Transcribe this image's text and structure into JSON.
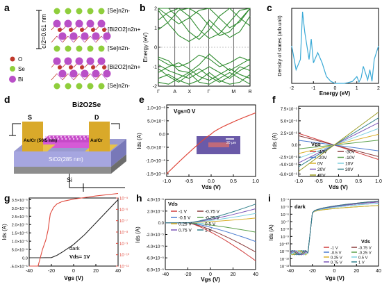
{
  "panels": {
    "a": {
      "letter": "a",
      "spacing_label": "c/2=0.61 nm",
      "layer_labels": [
        "[Se]n2n-",
        "[Bi2O2]n2n+",
        "[Se]n2n-",
        "[Bi2O2]n2n+",
        "[Se]n2n-"
      ],
      "legend": [
        {
          "label": "O",
          "color": "#c0392b"
        },
        {
          "label": "Se",
          "color": "#8fce3c"
        },
        {
          "label": "Bi",
          "color": "#b94fc7"
        }
      ]
    },
    "b": {
      "letter": "b",
      "ylabel": "Energy (eV)",
      "yticks": [
        "-2",
        "-1",
        "0",
        "1",
        "2"
      ],
      "kpoints": [
        "Γ",
        "A",
        "X",
        "Γ",
        "M",
        "R"
      ]
    },
    "c": {
      "letter": "c",
      "ylabel": "Density of states (arb.unit)",
      "xlabel": "Energy (eV)",
      "xticks": [
        "-2",
        "-1",
        "0",
        "1",
        "2"
      ]
    },
    "d": {
      "letter": "d",
      "title": "Bi2O2Se",
      "source": "S",
      "drain": "D",
      "left_contact": "Au/Cr (50/5 nm)",
      "right_contact": "Au/Cr",
      "oxide": "SiO2(285 nm)",
      "substrate": "Si"
    },
    "e": {
      "letter": "e",
      "annotation": "Vgs=0 V",
      "ylabel": "Ids (A)",
      "xlabel": "Vds (V)",
      "yticks": [
        "1.0×10⁻⁶",
        "5.0×10⁻⁷",
        "0.0",
        "-5.0×10⁻⁷",
        "-1.0×10⁻⁶",
        "-1.5×10⁻⁶"
      ],
      "xticks": [
        "-1.0",
        "-0.5",
        "0.0",
        "0.5",
        "1.0"
      ],
      "scale_bar": "20 μm"
    },
    "f": {
      "letter": "f",
      "legend_title": "Vgs",
      "ylabel": "Ids (A)",
      "xlabel": "Vds (V)",
      "yticks": [
        "7.5×10⁻⁶",
        "5.0×10⁻⁶",
        "2.5×10⁻⁶",
        "0.0",
        "-2.5×10⁻⁶",
        "-4.0×10⁻⁶",
        "-6.0×10⁻⁶"
      ],
      "xticks": [
        "-1.0",
        "-0.5",
        "0.0",
        "0.5",
        "1.0"
      ]
    },
    "g": {
      "letter": "g",
      "annotation1": "dark",
      "annotation2": "Vds= 1V",
      "ylabel": "Ids (A)",
      "xlabel": "Vgs (V)",
      "yticks": [
        "3.5×10⁻⁵",
        "3.0×10⁻⁵",
        "2.5×10⁻⁵",
        "2.0×10⁻⁵",
        "1.5×10⁻⁵",
        "1.0×10⁻⁵",
        "5.0×10⁻⁶",
        "0.0",
        "-5.0×10⁻⁶"
      ],
      "y2ticks": [
        "10⁻⁵",
        "10⁻⁶",
        "10⁻⁷",
        "10⁻⁸",
        "10⁻⁹",
        "10⁻¹⁰",
        "10⁻¹¹"
      ],
      "xticks": [
        "-40",
        "-20",
        "0",
        "20",
        "40"
      ]
    },
    "h": {
      "letter": "h",
      "legend_title": "Vds",
      "ylabel": "Ids (A)",
      "xlabel": "Vgs (V)",
      "yticks": [
        "4.0×10⁻⁵",
        "2.0×10⁻⁵",
        "0.0",
        "-2.0×10⁻⁵",
        "-4.0×10⁻⁵",
        "-6.0×10⁻⁵",
        "-8.0×10⁻⁵"
      ],
      "xticks": [
        "-40",
        "-20",
        "0",
        "20",
        "40"
      ]
    },
    "i": {
      "letter": "i",
      "annotation": "dark",
      "legend_title": "Vds",
      "ylabel": "Ids (A)",
      "xlabel": "Vgs (V)",
      "yticks": [
        "10⁻⁴",
        "10⁻⁵",
        "10⁻⁶",
        "10⁻⁷",
        "10⁻⁸",
        "10⁻⁹",
        "10⁻¹⁰",
        "10⁻¹¹",
        "10⁻¹²",
        "10⁻¹³"
      ],
      "xticks": [
        "-40",
        "-20",
        "0",
        "20",
        "40"
      ]
    }
  },
  "chart_data": [
    {
      "type": "line",
      "panel": "b",
      "ylabel": "Energy (eV)",
      "ylim": [
        -2,
        2
      ],
      "categories": [
        "Γ",
        "A",
        "X",
        "Γ",
        "M",
        "R"
      ],
      "series_count": 12
    },
    {
      "type": "line",
      "panel": "c",
      "xlabel": "Energy (eV)",
      "ylabel": "Density of states (arb.unit)",
      "xlim": [
        -2,
        2
      ],
      "x": [
        -2,
        -1.8,
        -1.6,
        -1.5,
        -1.4,
        -1.3,
        -1.2,
        -1.1,
        -1.0,
        -0.8,
        -0.6,
        -0.4,
        -0.2,
        0,
        0.2,
        0.4,
        0.6,
        0.8,
        1.0,
        1.1,
        1.2,
        1.3,
        1.4,
        1.5,
        1.6,
        1.7,
        1.8,
        1.9,
        2.0
      ],
      "values": [
        5.5,
        2.0,
        3.5,
        10.5,
        7.5,
        5.5,
        3.5,
        6.5,
        3.0,
        4.5,
        3.0,
        1.0,
        0.3,
        0,
        0,
        0,
        0.1,
        0.3,
        1.0,
        0.2,
        0.8,
        2.5,
        1.5,
        0.5,
        2.0,
        0.3,
        3.5,
        4.5,
        5.5
      ]
    },
    {
      "type": "line",
      "panel": "e",
      "xlabel": "Vds (V)",
      "ylabel": "Ids (A)",
      "annotation": "Vgs=0 V",
      "xlim": [
        -1,
        1
      ],
      "ylim": [
        -1.6e-06,
        1.1e-06
      ],
      "x": [
        -1,
        -0.75,
        -0.5,
        -0.25,
        0,
        0.25,
        0.5,
        0.75,
        1
      ],
      "values": [
        -1.5e-06,
        -1.05e-06,
        -6.5e-07,
        -3e-07,
        0,
        2.5e-07,
        4.5e-07,
        6.5e-07,
        8e-07
      ]
    },
    {
      "type": "line",
      "panel": "f",
      "xlabel": "Vds (V)",
      "ylabel": "Ids (A)",
      "xlim": [
        -1,
        1
      ],
      "ylim": [
        -6.5e-06,
        8e-06
      ],
      "legend_title": "Vgs",
      "series": [
        {
          "name": "-40V",
          "slope": -3e-06,
          "color": "#d03c3c"
        },
        {
          "name": "-30V",
          "slope": -2.4e-06,
          "color": "#8b3a3a"
        },
        {
          "name": "-20V",
          "slope": -1.2e-06,
          "color": "#4a7bd0"
        },
        {
          "name": "-10V",
          "slope": 1e-06,
          "color": "#5aa04a"
        },
        {
          "name": "0V",
          "slope": 2.2e-06,
          "color": "#d8b02a"
        },
        {
          "name": "10V",
          "slope": 3.4e-06,
          "color": "#7fd0e0"
        },
        {
          "name": "20V",
          "slope": 4.6e-06,
          "color": "#7b55b8"
        },
        {
          "name": "30V",
          "slope": 5.6e-06,
          "color": "#2f7f8a"
        },
        {
          "name": "40V",
          "slope": 6.8e-06,
          "color": "#9a9a20"
        }
      ]
    },
    {
      "type": "line",
      "panel": "g",
      "xlabel": "Vgs (V)",
      "ylabel": "Ids (A)",
      "annotation": "dark, Vds= 1V",
      "xlim": [
        -40,
        40
      ],
      "series": [
        {
          "name": "",
          "axis": "linear",
          "x": [
            -40,
            -30,
            -20,
            -15,
            -10,
            0,
            10,
            20,
            30,
            40
          ],
          "values": [
            0,
            0,
            1e-07,
            1.5e-06,
            3.5e-06,
            8e-06,
            1.4e-05,
            2.1e-05,
            2.8e-05,
            3.5e-05
          ],
          "color": "#222222"
        },
        {
          "name": "",
          "axis": "log",
          "x": [
            -40,
            -32,
            -28,
            -25,
            -23,
            -21,
            -18,
            -15,
            -10,
            0,
            20,
            40
          ],
          "values": [
            1e-11,
            1e-11,
            3e-10,
            2e-09,
            1.5e-08,
            4e-07,
            1.5e-06,
            3e-06,
            5e-06,
            8e-06,
            1.5e-05,
            2.5e-05
          ],
          "color": "#e0483c"
        }
      ]
    },
    {
      "type": "line",
      "panel": "h",
      "xlabel": "Vgs (V)",
      "ylabel": "Ids (A)",
      "xlim": [
        -40,
        40
      ],
      "ylim": [
        -8e-05,
        4e-05
      ],
      "legend_title": "Vds",
      "series": [
        {
          "name": "-1 V",
          "end": -6.5e-05,
          "color": "#d03c3c"
        },
        {
          "name": "-0.75 V",
          "end": -5e-05,
          "color": "#8b3a3a"
        },
        {
          "name": "-0.5 V",
          "end": -3.2e-05,
          "color": "#4a7bd0"
        },
        {
          "name": "-0.25 V",
          "end": -1.6e-05,
          "color": "#5aa04a"
        },
        {
          "name": "0.25 V",
          "end": 8e-06,
          "color": "#d8b02a"
        },
        {
          "name": "0.5 V",
          "end": 1.6e-05,
          "color": "#7fd0e0"
        },
        {
          "name": "0.75 V",
          "end": 2.4e-05,
          "color": "#7b55b8"
        },
        {
          "name": "1 V",
          "end": 3.2e-05,
          "color": "#2f7f8a"
        }
      ]
    },
    {
      "type": "line",
      "panel": "i",
      "xlabel": "Vgs (V)",
      "ylabel": "Ids (A)",
      "annotation": "dark",
      "xlim": [
        -40,
        40
      ],
      "ylim": [
        1e-13,
        0.0001
      ],
      "legend_title": "Vds",
      "series": [
        {
          "name": "-1 V",
          "end": 6e-05,
          "color": "#d03c3c"
        },
        {
          "name": "-0.75 V",
          "end": 4.5e-05,
          "color": "#8b3a3a"
        },
        {
          "name": "-0.5 V",
          "end": 3e-05,
          "color": "#4a7bd0"
        },
        {
          "name": "-0.25 V",
          "end": 1.5e-05,
          "color": "#5aa04a"
        },
        {
          "name": "0.25 V",
          "end": 1.5e-05,
          "color": "#d8b02a"
        },
        {
          "name": "0.5 V",
          "end": 3e-05,
          "color": "#7fd0e0"
        },
        {
          "name": "0.75 V",
          "end": 4.5e-05,
          "color": "#7b55b8"
        },
        {
          "name": "1 V",
          "end": 6e-05,
          "color": "#2f7f8a"
        }
      ]
    }
  ]
}
